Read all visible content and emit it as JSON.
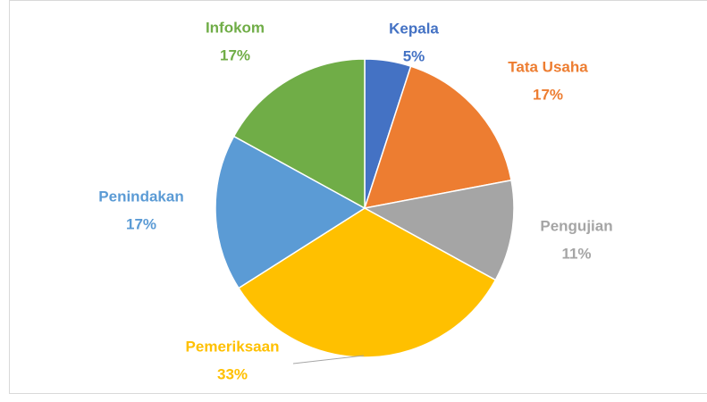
{
  "chart_data": {
    "type": "pie",
    "categories": [
      "Kepala",
      "Tata Usaha",
      "Pengujian",
      "Pemeriksaan",
      "Penindakan",
      "Infokom"
    ],
    "values": [
      5,
      17,
      11,
      33,
      17,
      17
    ],
    "value_labels": [
      "5%",
      "17%",
      "11%",
      "33%",
      "17%",
      "17%"
    ],
    "colors": [
      "#4472c4",
      "#ed7d31",
      "#a5a5a5",
      "#ffc000",
      "#5b9bd5",
      "#70ad47"
    ]
  }
}
